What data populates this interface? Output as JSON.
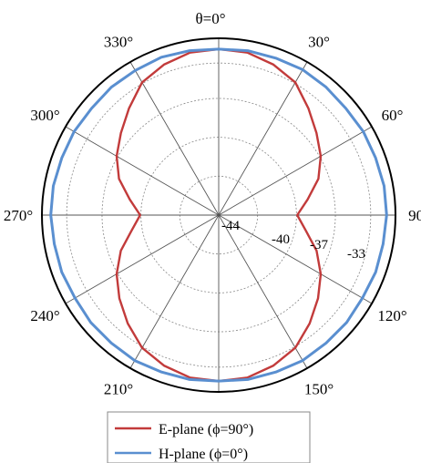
{
  "chart_data": {
    "type": "polar-line",
    "title": "θ=0°",
    "angle_ticks": [
      "30°",
      "60°",
      "90°",
      "120°",
      "150°",
      "210°",
      "240°",
      "270°",
      "300°",
      "330°"
    ],
    "angle_values": [
      30,
      60,
      90,
      120,
      150,
      210,
      240,
      270,
      300,
      330
    ],
    "radial_range": [
      -50,
      -32
    ],
    "radial_ticks": [
      -44,
      -40,
      -37,
      -33
    ],
    "radial_tick_labels": [
      "-44",
      "-40",
      "-37",
      "-33"
    ],
    "grid": true,
    "legend_position": "bottom",
    "series": [
      {
        "name": "E-plane (ϕ=90°)",
        "color": "#c23b3b",
        "theta_deg": [
          0,
          10,
          20,
          30,
          40,
          50,
          60,
          70,
          80,
          90,
          100,
          110,
          120,
          130,
          140,
          150,
          160,
          170,
          180,
          190,
          200,
          210,
          220,
          230,
          240,
          250,
          260,
          270,
          280,
          290,
          300,
          310,
          320,
          330,
          340,
          350
        ],
        "r_db": [
          -33.1,
          -33.2,
          -33.7,
          -34.4,
          -35.8,
          -37.0,
          -38.0,
          -39.2,
          -40.8,
          -42.0,
          -41.0,
          -39.4,
          -38.0,
          -36.8,
          -35.6,
          -34.4,
          -33.7,
          -33.2,
          -33.1,
          -33.2,
          -33.7,
          -34.4,
          -35.6,
          -36.8,
          -38.0,
          -39.4,
          -41.0,
          -42.0,
          -40.8,
          -39.2,
          -38.0,
          -37.0,
          -35.8,
          -34.4,
          -33.7,
          -33.2
        ]
      },
      {
        "name": "H-plane (ϕ=0°)",
        "color": "#5a8fd0",
        "theta_deg": [
          0,
          10,
          20,
          30,
          40,
          50,
          60,
          70,
          80,
          90,
          100,
          110,
          120,
          130,
          140,
          150,
          160,
          170,
          180,
          190,
          200,
          210,
          220,
          230,
          240,
          250,
          260,
          270,
          280,
          290,
          300,
          310,
          320,
          330,
          340,
          350
        ],
        "r_db": [
          -33.1,
          -33.0,
          -33.0,
          -32.9,
          -33.0,
          -33.1,
          -33.0,
          -33.0,
          -32.9,
          -32.9,
          -33.0,
          -33.0,
          -33.1,
          -33.0,
          -33.0,
          -32.9,
          -33.0,
          -33.0,
          -33.1,
          -33.0,
          -33.0,
          -32.9,
          -33.0,
          -33.0,
          -33.1,
          -33.0,
          -33.0,
          -32.9,
          -32.9,
          -33.0,
          -33.0,
          -33.1,
          -33.0,
          -33.0,
          -32.9,
          -33.0
        ]
      }
    ]
  }
}
